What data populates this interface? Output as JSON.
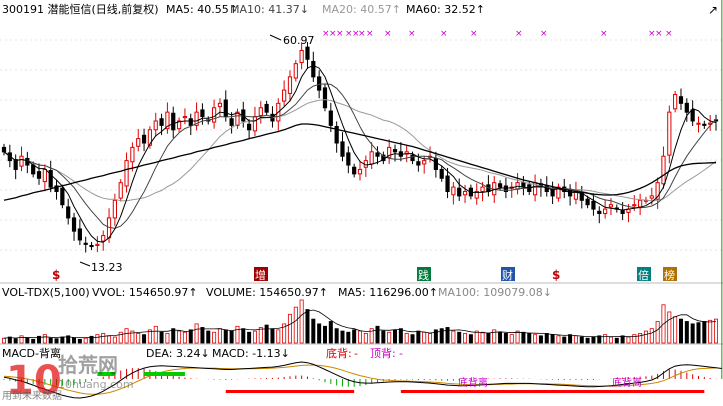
{
  "header": {
    "stock": "300191 潜能恒信(日线,前复权)",
    "ma5": "MA5: 40.55↑",
    "ma10": "MA10: 41.37↓",
    "ma20": "MA20: 40.57↑",
    "ma60": "MA60: 32.52↑"
  },
  "price_annotations": {
    "high": "60.97",
    "low": "13.23"
  },
  "event_badges": [
    {
      "label": "$",
      "color": "#c00000",
      "style": "text"
    },
    {
      "label": "增",
      "color": "#a00000",
      "style": "box"
    },
    {
      "label": "践",
      "color": "#007a3d",
      "style": "box"
    },
    {
      "label": "财",
      "color": "#2255aa",
      "style": "box"
    },
    {
      "label": "$",
      "color": "#c00000",
      "style": "text"
    },
    {
      "label": "倍",
      "color": "#008080",
      "style": "box"
    },
    {
      "label": "榜",
      "color": "#b07000",
      "style": "box"
    }
  ],
  "volume_header": {
    "name": "VOL-TDX(5,100)",
    "vvol": "VVOL: 154650.97↑",
    "volume": "VOLUME: 154650.97↑",
    "ma5": "MA5: 116296.00↑",
    "ma100": "MA100: 109079.08↓"
  },
  "macd_header": {
    "name": "MACD-背离",
    "dea": "DEA: 3.24↓",
    "macd": "MACD: -1.13↓",
    "bottom_div_label": "底背:",
    "bottom_div_value": "-",
    "top_div_label": "顶背:",
    "top_div_value": "-"
  },
  "macd_marks": [
    "底背离",
    "底背离"
  ],
  "watermark": {
    "brand": "10",
    "name": "拾荒网",
    "url": "10huang.com",
    "footer": "用到未来数据"
  },
  "colors": {
    "up": "#e00000",
    "down": "#000000",
    "ma5": "#000000",
    "ma10": "#444444",
    "ma20": "#999999",
    "ma60": "#000000",
    "signal": "#cc00cc",
    "green_bar": "#00cc00",
    "red_bar": "#ff0000",
    "axis": "#aaaaaa"
  },
  "chart_data": [
    {
      "type": "candlestick",
      "title": "300191 潜能恒信(日线,前复权)",
      "ylim": [
        10,
        64
      ],
      "close": [
        35,
        33,
        31,
        34,
        32,
        30,
        29,
        31,
        27,
        26,
        23,
        20,
        17,
        15,
        14,
        13.5,
        14,
        16,
        20,
        24,
        28,
        33,
        36,
        38,
        37,
        40,
        42,
        41,
        44,
        40,
        42,
        43,
        41,
        44,
        43,
        42,
        45,
        46,
        43,
        41,
        44,
        42,
        40,
        43,
        45,
        44,
        42,
        46,
        49,
        52,
        55,
        58,
        56,
        52,
        49,
        45,
        41,
        37,
        34,
        32,
        30,
        31,
        33,
        35,
        34,
        33,
        36,
        35,
        34,
        35,
        33,
        32,
        33,
        34,
        31,
        29,
        26,
        27,
        25,
        26,
        25,
        26,
        27,
        26,
        28,
        27,
        26,
        27,
        28,
        27,
        26,
        28,
        27,
        26,
        25,
        27,
        26,
        25,
        26,
        24,
        23,
        22,
        21,
        22,
        23,
        22,
        21,
        22,
        23,
        24,
        24,
        25,
        28,
        34,
        44,
        48,
        46,
        44,
        42,
        41.5,
        41,
        41.5,
        42
      ],
      "ma60": [
        24,
        24.3,
        24.6,
        25,
        25.3,
        25.7,
        26,
        26.3,
        26.6,
        27,
        27.3,
        27.6,
        28,
        28.3,
        28.6,
        29,
        29.3,
        29.6,
        30,
        30.3,
        30.6,
        31,
        31.3,
        31.6,
        32,
        32.3,
        32.6,
        33,
        33.3,
        33.6,
        34,
        34.3,
        34.6,
        35,
        35.3,
        35.6,
        36,
        36.3,
        36.6,
        37,
        37.3,
        37.6,
        38,
        38.3,
        38.6,
        39,
        39.3,
        39.6,
        40,
        40.5,
        41,
        41.3,
        41.3,
        41.2,
        41,
        40.7,
        40.4,
        40.1,
        39.8,
        39.5,
        39.2,
        38.9,
        38.6,
        38.3,
        38,
        37.7,
        37.4,
        37.1,
        36.8,
        36.5,
        36.2,
        35.8,
        35.4,
        35,
        34.6,
        34.2,
        33.8,
        33.4,
        33,
        32.6,
        32.2,
        31.8,
        31.4,
        31,
        30.6,
        30.2,
        29.8,
        29.4,
        29,
        28.6,
        28.3,
        28,
        27.7,
        27.4,
        27.1,
        26.8,
        26.5,
        26.2,
        26,
        25.8,
        25.6,
        25.4,
        25.3,
        25.2,
        25.2,
        25.3,
        25.5,
        25.8,
        26.2,
        26.7,
        27.3,
        28,
        28.8,
        29.7,
        30.6,
        31.3,
        31.8,
        32.1,
        32.3,
        32.4,
        32.45,
        32.5,
        32.52
      ]
    },
    {
      "type": "bar",
      "title": "VOL-TDX(5,100)",
      "values": [
        20,
        25,
        18,
        30,
        22,
        15,
        28,
        35,
        20,
        18,
        25,
        30,
        22,
        15,
        20,
        28,
        35,
        40,
        30,
        25,
        45,
        60,
        50,
        40,
        35,
        55,
        70,
        45,
        40,
        60,
        50,
        45,
        55,
        80,
        65,
        50,
        45,
        60,
        55,
        50,
        70,
        60,
        45,
        50,
        65,
        75,
        60,
        55,
        80,
        120,
        150,
        180,
        140,
        100,
        80,
        70,
        90,
        60,
        50,
        45,
        55,
        50,
        40,
        60,
        70,
        50,
        45,
        55,
        60,
        40,
        35,
        50,
        45,
        40,
        55,
        60,
        65,
        50,
        45,
        40,
        35,
        50,
        45,
        40,
        55,
        45,
        40,
        35,
        50,
        45,
        40,
        35,
        30,
        40,
        35,
        30,
        25,
        35,
        30,
        25,
        20,
        25,
        30,
        35,
        25,
        20,
        30,
        25,
        35,
        40,
        50,
        60,
        90,
        160,
        130,
        110,
        100,
        90,
        80,
        85,
        90,
        95,
        100
      ],
      "up": [
        1,
        0,
        0,
        1,
        0,
        0,
        0,
        1,
        0,
        0,
        0,
        0,
        0,
        0,
        1,
        0,
        1,
        1,
        1,
        1,
        1,
        1,
        1,
        1,
        0,
        1,
        1,
        0,
        1,
        0,
        1,
        1,
        0,
        1,
        0,
        0,
        1,
        1,
        0,
        0,
        1,
        0,
        0,
        1,
        1,
        0,
        0,
        1,
        1,
        1,
        1,
        1,
        0,
        0,
        0,
        0,
        0,
        0,
        0,
        0,
        0,
        1,
        1,
        1,
        0,
        0,
        1,
        0,
        0,
        1,
        0,
        0,
        1,
        1,
        0,
        0,
        0,
        1,
        0,
        1,
        0,
        1,
        1,
        0,
        1,
        0,
        0,
        1,
        1,
        0,
        0,
        1,
        0,
        0,
        0,
        1,
        0,
        0,
        1,
        0,
        0,
        0,
        0,
        1,
        1,
        0,
        0,
        1,
        1,
        1,
        1,
        1,
        1,
        1,
        1,
        1,
        0,
        0,
        0,
        0,
        0,
        1,
        1
      ]
    },
    {
      "type": "line",
      "title": "MACD-背离",
      "dif": [
        0.5,
        0.2,
        -0.3,
        -0.6,
        -1.2,
        -1.8,
        -2.5,
        -3,
        -3.6,
        -4.2,
        -4.8,
        -5.2,
        -5.5,
        -5.6,
        -5.4,
        -5,
        -4.4,
        -3.6,
        -2.6,
        -1.6,
        -0.4,
        0.8,
        1.8,
        2.6,
        3.2,
        3.6,
        3.8,
        3.9,
        3.8,
        3.7,
        3.6,
        3.5,
        3.4,
        3.3,
        3.2,
        3.1,
        3,
        2.9,
        2.8,
        2.8,
        2.9,
        3,
        3.1,
        3.2,
        3.3,
        3.4,
        3.5,
        3.7,
        4,
        4.4,
        4.8,
        5,
        4.8,
        4.3,
        3.6,
        2.8,
        2,
        1.2,
        0.4,
        -0.3,
        -0.8,
        -1.1,
        -1.2,
        -1.2,
        -1.1,
        -1,
        -0.9,
        -0.8,
        -0.8,
        -0.8,
        -0.9,
        -1,
        -1.1,
        -1.2,
        -1.4,
        -1.6,
        -1.8,
        -1.9,
        -2,
        -2,
        -1.9,
        -1.8,
        -1.7,
        -1.6,
        -1.5,
        -1.4,
        -1.3,
        -1.3,
        -1.3,
        -1.3,
        -1.3,
        -1.4,
        -1.5,
        -1.6,
        -1.7,
        -1.8,
        -1.9,
        -2,
        -2.1,
        -2.2,
        -2.3,
        -2.3,
        -2.2,
        -2.1,
        -2,
        -1.8,
        -1.6,
        -1.4,
        -1.2,
        -1,
        -0.7,
        -0.3,
        0.5,
        1.8,
        3,
        3.8,
        4.1,
        4.2,
        4.1,
        3.9,
        3.7,
        3.5,
        3.3,
        3.1
      ],
      "dea": [
        0.8,
        0.7,
        0.5,
        0.3,
        0,
        -0.4,
        -0.8,
        -1.3,
        -1.8,
        -2.3,
        -2.8,
        -3.3,
        -3.7,
        -4.1,
        -4.4,
        -4.5,
        -4.5,
        -4.3,
        -4,
        -3.5,
        -2.9,
        -2.2,
        -1.4,
        -0.6,
        0.2,
        0.9,
        1.5,
        2,
        2.4,
        2.7,
        2.9,
        3.1,
        3.2,
        3.2,
        3.2,
        3.2,
        3.2,
        3.1,
        3.1,
        3,
        3,
        3,
        3,
        3,
        3.1,
        3.1,
        3.2,
        3.3,
        3.4,
        3.6,
        3.8,
        4,
        4.1,
        4.1,
        4,
        3.8,
        3.5,
        3.1,
        2.6,
        2,
        1.5,
        1,
        0.6,
        0.2,
        -0.1,
        -0.3,
        -0.4,
        -0.5,
        -0.6,
        -0.6,
        -0.7,
        -0.7,
        -0.8,
        -0.9,
        -1,
        -1.1,
        -1.3,
        -1.4,
        -1.5,
        -1.6,
        -1.7,
        -1.7,
        -1.7,
        -1.7,
        -1.6,
        -1.6,
        -1.5,
        -1.5,
        -1.4,
        -1.4,
        -1.4,
        -1.4,
        -1.4,
        -1.4,
        -1.5,
        -1.5,
        -1.6,
        -1.7,
        -1.8,
        -1.9,
        -2,
        -2,
        -2.1,
        -2.1,
        -2.1,
        -2.1,
        -2,
        -1.9,
        -1.8,
        -1.7,
        -1.5,
        -1.3,
        -1,
        -0.5,
        0.2,
        1,
        1.7,
        2.3,
        2.7,
        3,
        3.1,
        3.2,
        3.24
      ],
      "green_ranges": [
        [
          16,
          19
        ],
        [
          24,
          31
        ]
      ],
      "red_ranges": [
        [
          38,
          60
        ],
        [
          68,
          120
        ]
      ]
    }
  ]
}
